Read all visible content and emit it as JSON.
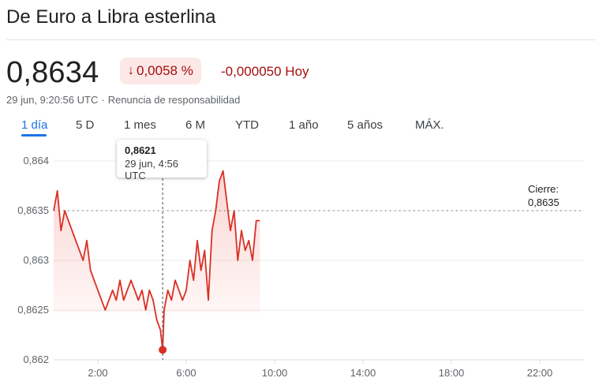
{
  "header": {
    "title": "De Euro a Libra esterlina",
    "price": "0,8634",
    "pct_change": "0,0058 %",
    "abs_change": "-0,000050 Hoy",
    "timestamp": "29 jun, 9:20:56 UTC",
    "separator": "·",
    "disclaimer": "Renuncia de responsabilidad"
  },
  "ranges": [
    "1 día",
    "5 D",
    "1 mes",
    "6 M",
    "YTD",
    "1 año",
    "5 años",
    "MÁX."
  ],
  "selected_range": "1 día",
  "tooltip": {
    "value": "0,8621",
    "time": "29 jun, 4:56 UTC"
  },
  "close": {
    "label": "Cierre:",
    "value": "0,8635"
  },
  "colors": {
    "negative": "#a50e0e",
    "line": "#d93025",
    "accent": "#1a73e8",
    "badge_bg": "#fce8e6"
  },
  "icons": {
    "change_direction": "arrow-down-icon"
  },
  "chart_data": {
    "type": "line",
    "title": "",
    "xlabel": "",
    "ylabel": "",
    "ylim": [
      0.862,
      0.864
    ],
    "xlim": [
      "0:00",
      "24:00"
    ],
    "x_ticks": [
      "2:00",
      "6:00",
      "10:00",
      "14:00",
      "18:00",
      "22:00"
    ],
    "y_ticks": [
      "0,862",
      "0,8625",
      "0,863",
      "0,8635",
      "0,864"
    ],
    "previous_close": 0.8635,
    "grid": true,
    "series": [
      {
        "x": [
          "0:00",
          "0:10",
          "0:20",
          "0:30",
          "0:40",
          "0:50",
          "1:00",
          "1:10",
          "1:20",
          "1:30",
          "1:40",
          "1:50",
          "2:00",
          "2:10",
          "2:20",
          "2:30",
          "2:40",
          "2:50",
          "3:00",
          "3:10",
          "3:20",
          "3:30",
          "3:40",
          "3:50",
          "4:00",
          "4:10",
          "4:20",
          "4:30",
          "4:40",
          "4:50",
          "4:56",
          "5:00",
          "5:10",
          "5:20",
          "5:30",
          "5:40",
          "5:50",
          "6:00",
          "6:10",
          "6:20",
          "6:30",
          "6:40",
          "6:50",
          "7:00",
          "7:10",
          "7:20",
          "7:30",
          "7:40",
          "7:50",
          "8:00",
          "8:10",
          "8:20",
          "8:30",
          "8:40",
          "8:50",
          "9:00",
          "9:10",
          "9:20"
        ],
        "y": [
          0.8635,
          0.8637,
          0.8633,
          0.8635,
          0.8634,
          0.8633,
          0.8632,
          0.8631,
          0.863,
          0.8632,
          0.8629,
          0.8628,
          0.8627,
          0.8626,
          0.8625,
          0.8626,
          0.8627,
          0.8626,
          0.8628,
          0.8626,
          0.8627,
          0.8628,
          0.8627,
          0.8626,
          0.8627,
          0.8625,
          0.8627,
          0.8626,
          0.8624,
          0.8623,
          0.8621,
          0.8625,
          0.8627,
          0.8626,
          0.8628,
          0.8627,
          0.8626,
          0.8627,
          0.863,
          0.8628,
          0.8632,
          0.8629,
          0.8631,
          0.8626,
          0.8633,
          0.8635,
          0.8638,
          0.8639,
          0.8636,
          0.8633,
          0.8635,
          0.863,
          0.8633,
          0.8631,
          0.8632,
          0.863,
          0.8634,
          0.8634
        ]
      }
    ],
    "highlight_point": {
      "x": "4:56",
      "y": 0.8621
    }
  }
}
